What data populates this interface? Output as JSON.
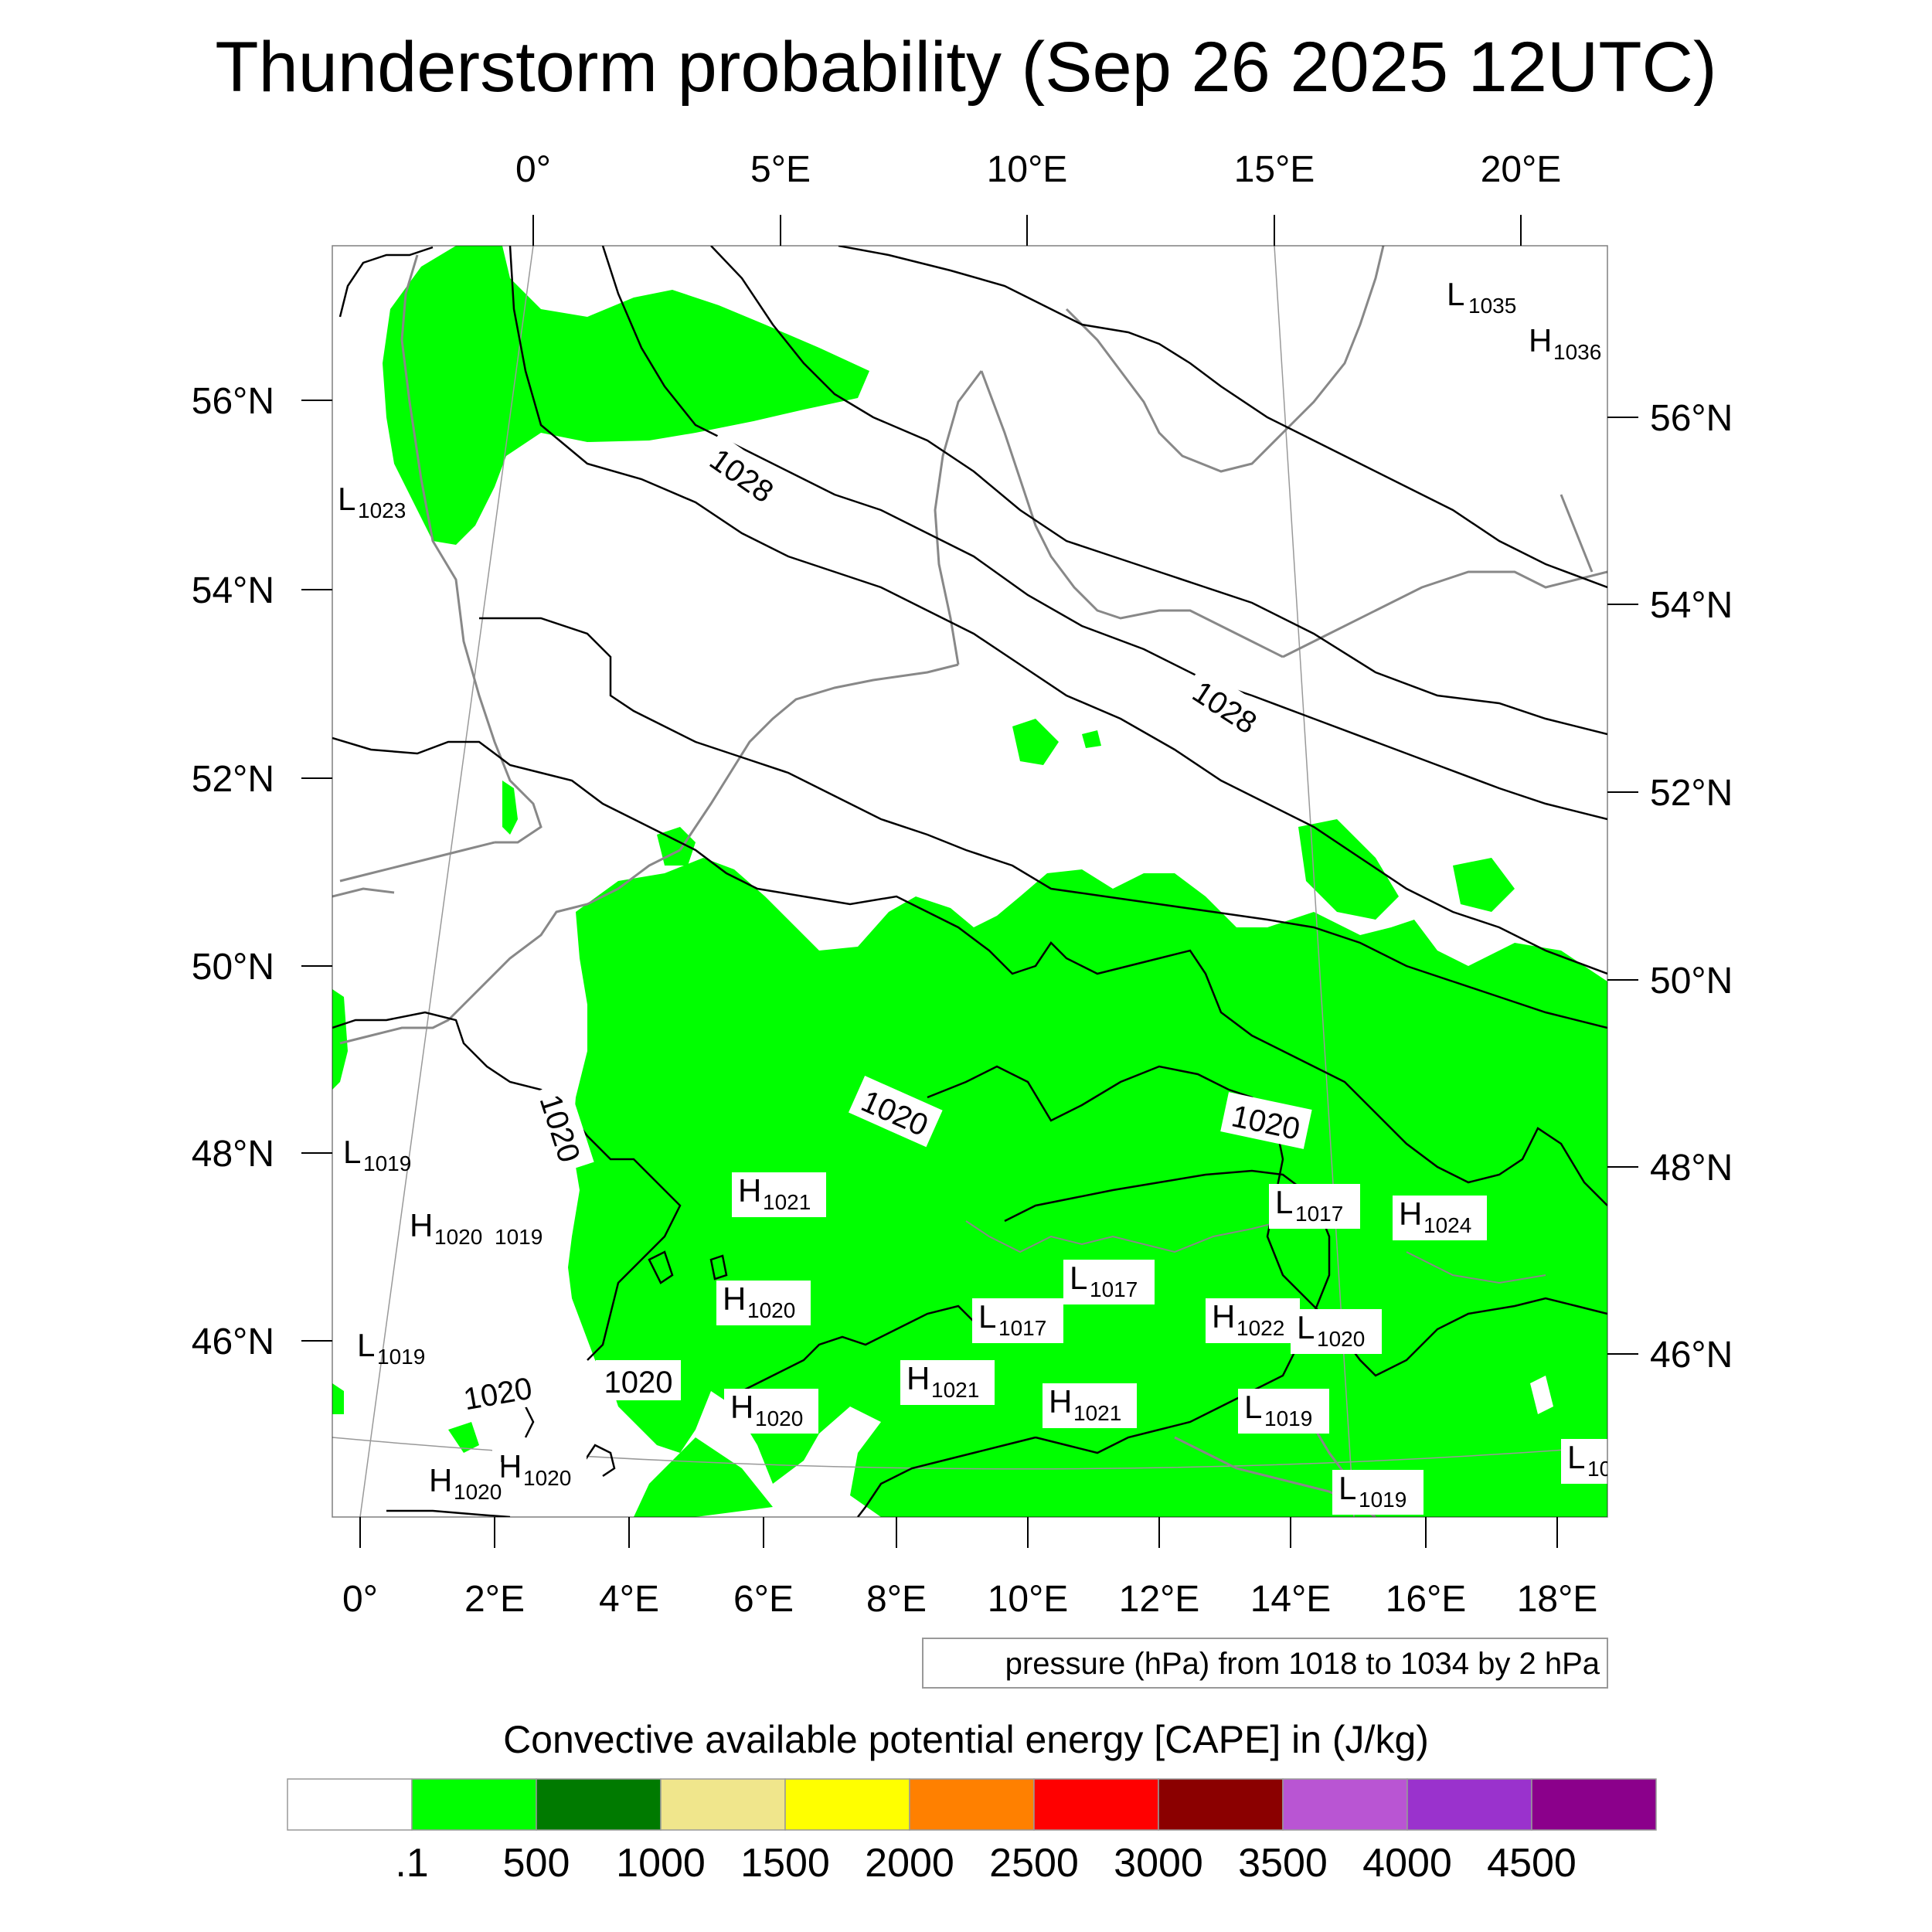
{
  "title": "Thunderstorm probability (Sep 26 2025 12UTC)",
  "top_lon_labels": [
    "0°",
    "5°E",
    "10°E",
    "15°E",
    "20°E"
  ],
  "bottom_lon_labels": [
    "0°",
    "2°E",
    "4°E",
    "6°E",
    "8°E",
    "10°E",
    "12°E",
    "14°E",
    "16°E",
    "18°E"
  ],
  "left_lat_labels": [
    "56°N",
    "54°N",
    "52°N",
    "50°N",
    "48°N",
    "46°N"
  ],
  "right_lat_labels": [
    "56°N",
    "54°N",
    "52°N",
    "50°N",
    "48°N",
    "46°N"
  ],
  "contour_labels": [
    "1028",
    "1028",
    "1020",
    "1020",
    "1020",
    "1020",
    "1020"
  ],
  "pressure_centers": [
    {
      "type": "L",
      "value": "1035"
    },
    {
      "type": "H",
      "value": "1036"
    },
    {
      "type": "L",
      "value": "1023"
    },
    {
      "type": "L",
      "value": "1019"
    },
    {
      "type": "H",
      "value": "1020"
    },
    {
      "type": "",
      "value": "1019"
    },
    {
      "type": "L",
      "value": "1019"
    },
    {
      "type": "H",
      "value": "1021"
    },
    {
      "type": "H",
      "value": "1020"
    },
    {
      "type": "H",
      "value": "1020"
    },
    {
      "type": "H",
      "value": "1020"
    },
    {
      "type": "H",
      "value": "1020"
    },
    {
      "type": "L",
      "value": "1017"
    },
    {
      "type": "H",
      "value": "1024"
    },
    {
      "type": "L",
      "value": "1017"
    },
    {
      "type": "L",
      "value": "1017"
    },
    {
      "type": "H",
      "value": "1022"
    },
    {
      "type": "L",
      "value": "1020"
    },
    {
      "type": "H",
      "value": "1021"
    },
    {
      "type": "H",
      "value": "1021"
    },
    {
      "type": "L",
      "value": "1019"
    },
    {
      "type": "L",
      "value": "1019"
    },
    {
      "type": "L",
      "value": "10"
    }
  ],
  "pressure_note": "pressure (hPa) from 1018 to 1034 by 2 hPa",
  "colorbar": {
    "title": "Convective available potential energy [CAPE] in (J/kg)",
    "colors": [
      "#ffffff",
      "#00ff00",
      "#007a00",
      "#f0e68c",
      "#ffff00",
      "#ff8000",
      "#ff0000",
      "#8b0000",
      "#b955d3",
      "#9a32cd",
      "#8b008b"
    ],
    "labels": [
      ".1",
      "500",
      "1000",
      "1500",
      "2000",
      "2500",
      "3000",
      "3500",
      "4000",
      "4500"
    ]
  },
  "colors": {
    "cape_fill": "#00ff00",
    "isobar": "#000000",
    "coastline": "#888888",
    "graticule": "#999999"
  }
}
